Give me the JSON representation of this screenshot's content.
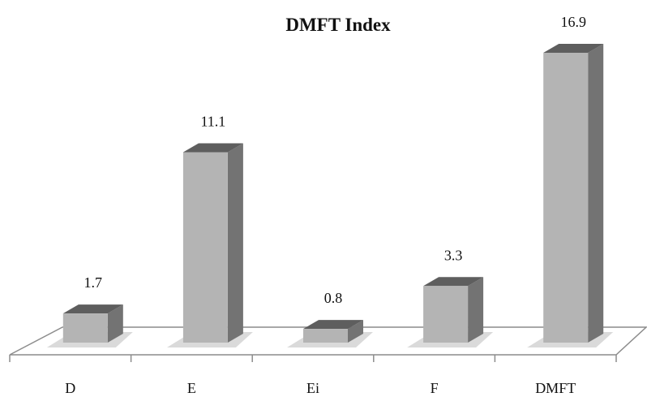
{
  "chart_data": {
    "type": "bar",
    "style": "3d",
    "title": "DMFT Index",
    "categories": [
      "D",
      "E",
      "Ei",
      "F",
      "DMFT"
    ],
    "values": [
      1.7,
      11.1,
      0.8,
      3.3,
      16.9
    ],
    "data_labels": true,
    "grid": false,
    "legend": "none",
    "colors": {
      "front": "#b4b4b4",
      "side": "#737373",
      "top": "#5e5e5e",
      "shadow": "#dadada",
      "floor": "#8c8c8c"
    }
  }
}
